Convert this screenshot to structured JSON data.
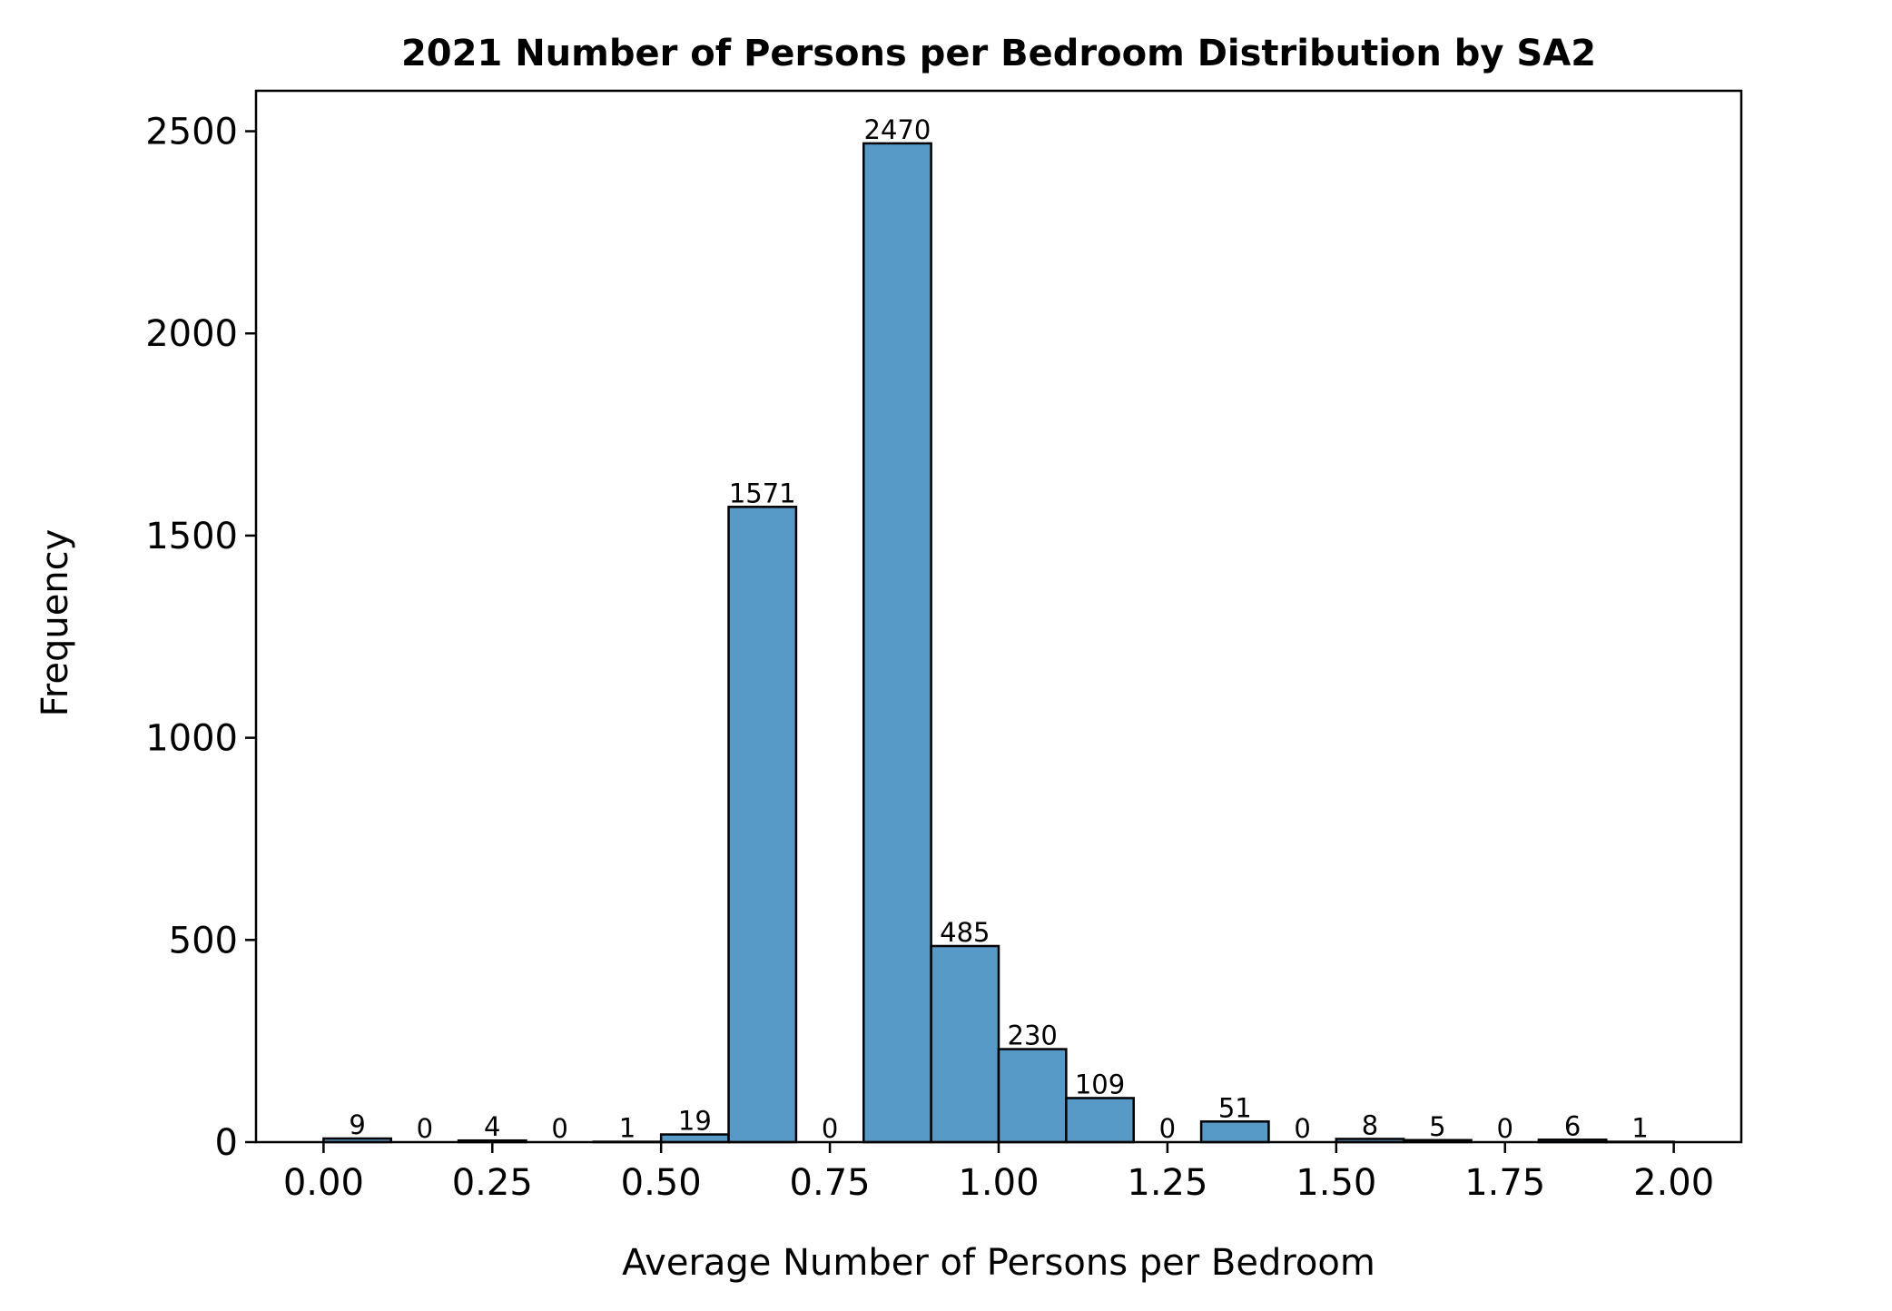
{
  "chart_data": {
    "type": "bar",
    "title": "2021 Number of Persons per Bedroom Distribution by SA2",
    "xlabel": "Average Number of Persons per Bedroom",
    "ylabel": "Frequency",
    "bin_edges": [
      0.0,
      0.1,
      0.2,
      0.3,
      0.4,
      0.5,
      0.6,
      0.7,
      0.8,
      0.9,
      1.0,
      1.1,
      1.2,
      1.3,
      1.4,
      1.5,
      1.6,
      1.7,
      1.8,
      1.9,
      2.0
    ],
    "values": [
      9,
      0,
      4,
      0,
      1,
      19,
      1571,
      0,
      2470,
      485,
      230,
      109,
      0,
      51,
      0,
      8,
      5,
      0,
      6,
      1
    ],
    "xlim": [
      -0.1,
      2.1
    ],
    "ylim": [
      0,
      2600
    ],
    "xticks": [
      0.0,
      0.25,
      0.5,
      0.75,
      1.0,
      1.25,
      1.5,
      1.75,
      2.0
    ],
    "xtick_labels": [
      "0.00",
      "0.25",
      "0.50",
      "0.75",
      "1.00",
      "1.25",
      "1.50",
      "1.75",
      "2.00"
    ],
    "yticks": [
      0,
      500,
      1000,
      1500,
      2000,
      2500
    ],
    "ytick_labels": [
      "0",
      "500",
      "1000",
      "1500",
      "2000",
      "2500"
    ],
    "bar_color": "#5799c7",
    "edge_color": "#000000",
    "grid": false,
    "legend": "none"
  }
}
